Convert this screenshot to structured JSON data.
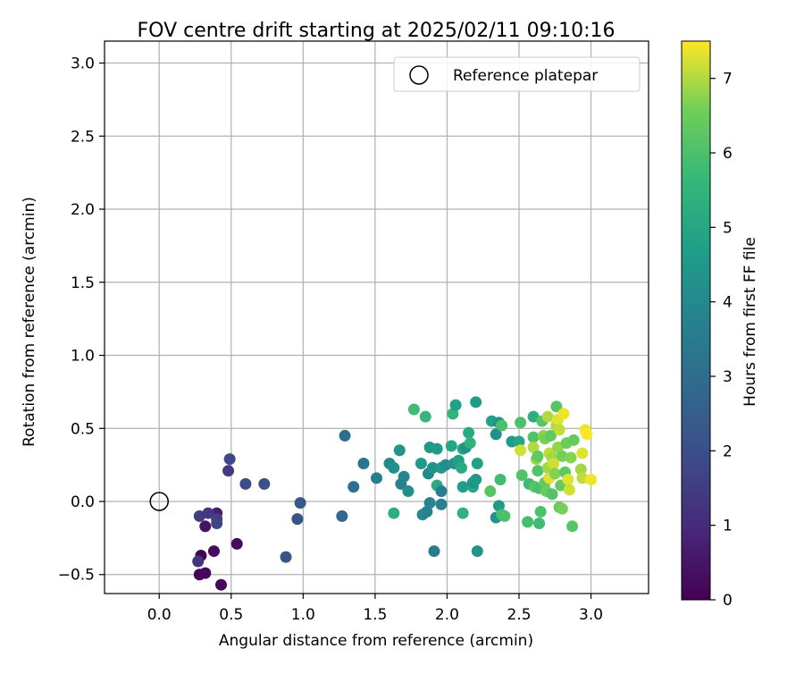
{
  "chart_data": {
    "type": "scatter",
    "title": "FOV centre drift starting at 2025/02/11 09:10:16",
    "xlabel": "Angular distance from reference (arcmin)",
    "ylabel": "Rotation from reference (arcmin)",
    "xlim": [
      -0.38,
      3.4
    ],
    "ylim": [
      -0.63,
      3.15
    ],
    "xticks": [
      "0.0",
      "0.5",
      "1.0",
      "1.5",
      "2.0",
      "2.5",
      "3.0"
    ],
    "xtick_values": [
      0,
      0.5,
      1.0,
      1.5,
      2.0,
      2.5,
      3.0
    ],
    "yticks": [
      "−0.5",
      "0.0",
      "0.5",
      "1.0",
      "1.5",
      "2.0",
      "2.5",
      "3.0"
    ],
    "ytick_values": [
      -0.5,
      0,
      0.5,
      1.0,
      1.5,
      2.0,
      2.5,
      3.0
    ],
    "grid": true,
    "legend": {
      "label": "Reference platepar",
      "placement": "top-right"
    },
    "reference_point": {
      "x": 0.0,
      "y": 0.0
    },
    "colorbar": {
      "label": "Hours from first FF file",
      "range": [
        0,
        7.5
      ],
      "ticks": [
        "0",
        "1",
        "2",
        "3",
        "4",
        "5",
        "6",
        "7"
      ],
      "tick_values": [
        0,
        1,
        2,
        3,
        4,
        5,
        6,
        7
      ],
      "colormap": "viridis"
    },
    "points": [
      {
        "x": 0.28,
        "y": -0.5,
        "t": 0.05
      },
      {
        "x": 0.29,
        "y": -0.37,
        "t": 0.1
      },
      {
        "x": 0.32,
        "y": -0.49,
        "t": 0.15
      },
      {
        "x": 0.43,
        "y": -0.57,
        "t": 0.2
      },
      {
        "x": 0.38,
        "y": -0.34,
        "t": 0.25
      },
      {
        "x": 0.54,
        "y": -0.29,
        "t": 0.3
      },
      {
        "x": 0.32,
        "y": -0.17,
        "t": 0.45
      },
      {
        "x": 0.4,
        "y": -0.08,
        "t": 0.7
      },
      {
        "x": 0.27,
        "y": -0.41,
        "t": 1.3
      },
      {
        "x": 0.28,
        "y": -0.1,
        "t": 1.5
      },
      {
        "x": 0.34,
        "y": -0.08,
        "t": 1.4
      },
      {
        "x": 0.4,
        "y": -0.12,
        "t": 1.6
      },
      {
        "x": 0.4,
        "y": -0.15,
        "t": 1.7
      },
      {
        "x": 0.49,
        "y": 0.29,
        "t": 1.8
      },
      {
        "x": 0.48,
        "y": 0.21,
        "t": 1.4
      },
      {
        "x": 0.6,
        "y": 0.12,
        "t": 1.9
      },
      {
        "x": 0.73,
        "y": 0.12,
        "t": 2.1
      },
      {
        "x": 0.88,
        "y": -0.38,
        "t": 2.1
      },
      {
        "x": 0.96,
        "y": -0.12,
        "t": 2.2
      },
      {
        "x": 0.98,
        "y": -0.01,
        "t": 2.3
      },
      {
        "x": 1.27,
        "y": -0.1,
        "t": 2.9
      },
      {
        "x": 1.29,
        "y": 0.45,
        "t": 3.0
      },
      {
        "x": 1.35,
        "y": 0.1,
        "t": 3.1
      },
      {
        "x": 1.42,
        "y": 0.26,
        "t": 3.3
      },
      {
        "x": 1.51,
        "y": 0.16,
        "t": 3.6
      },
      {
        "x": 1.6,
        "y": 0.26,
        "t": 4.0
      },
      {
        "x": 1.63,
        "y": 0.23,
        "t": 4.2
      },
      {
        "x": 1.67,
        "y": 0.35,
        "t": 4.4
      },
      {
        "x": 1.68,
        "y": 0.12,
        "t": 3.7
      },
      {
        "x": 1.7,
        "y": 0.17,
        "t": 3.9
      },
      {
        "x": 1.73,
        "y": 0.07,
        "t": 4.2
      },
      {
        "x": 1.63,
        "y": -0.08,
        "t": 5.3
      },
      {
        "x": 1.77,
        "y": 0.63,
        "t": 5.8
      },
      {
        "x": 1.82,
        "y": 0.26,
        "t": 4.5
      },
      {
        "x": 1.83,
        "y": -0.09,
        "t": 4.0
      },
      {
        "x": 1.85,
        "y": 0.58,
        "t": 5.6
      },
      {
        "x": 1.86,
        "y": -0.07,
        "t": 3.8
      },
      {
        "x": 1.88,
        "y": -0.01,
        "t": 3.9
      },
      {
        "x": 1.88,
        "y": 0.37,
        "t": 4.5
      },
      {
        "x": 1.87,
        "y": 0.19,
        "t": 4.0
      },
      {
        "x": 1.9,
        "y": 0.23,
        "t": 4.3
      },
      {
        "x": 1.91,
        "y": -0.34,
        "t": 3.5
      },
      {
        "x": 1.93,
        "y": 0.36,
        "t": 4.6
      },
      {
        "x": 1.93,
        "y": 0.11,
        "t": 5.2
      },
      {
        "x": 1.96,
        "y": 0.07,
        "t": 3.6
      },
      {
        "x": 1.96,
        "y": -0.02,
        "t": 3.7
      },
      {
        "x": 1.96,
        "y": 0.23,
        "t": 4.6
      },
      {
        "x": 1.99,
        "y": 0.25,
        "t": 4.1
      },
      {
        "x": 2.03,
        "y": 0.38,
        "t": 5.0
      },
      {
        "x": 2.04,
        "y": 0.6,
        "t": 5.5
      },
      {
        "x": 2.05,
        "y": 0.26,
        "t": 4.3
      },
      {
        "x": 2.06,
        "y": 0.66,
        "t": 4.8
      },
      {
        "x": 2.08,
        "y": 0.28,
        "t": 4.8
      },
      {
        "x": 2.1,
        "y": 0.23,
        "t": 5.2
      },
      {
        "x": 2.11,
        "y": 0.36,
        "t": 4.9
      },
      {
        "x": 2.11,
        "y": -0.08,
        "t": 5.4
      },
      {
        "x": 2.11,
        "y": 0.1,
        "t": 4.7
      },
      {
        "x": 2.13,
        "y": 0.37,
        "t": 4.3
      },
      {
        "x": 2.15,
        "y": 0.47,
        "t": 5.1
      },
      {
        "x": 2.16,
        "y": 0.4,
        "t": 5.4
      },
      {
        "x": 2.18,
        "y": 0.1,
        "t": 5.0
      },
      {
        "x": 2.18,
        "y": 0.13,
        "t": 4.4
      },
      {
        "x": 2.2,
        "y": 0.68,
        "t": 4.6
      },
      {
        "x": 2.2,
        "y": 0.15,
        "t": 4.5
      },
      {
        "x": 2.21,
        "y": 0.26,
        "t": 4.8
      },
      {
        "x": 2.21,
        "y": -0.34,
        "t": 4.4
      },
      {
        "x": 2.3,
        "y": 0.07,
        "t": 6.2
      },
      {
        "x": 2.31,
        "y": 0.55,
        "t": 4.8
      },
      {
        "x": 2.34,
        "y": 0.46,
        "t": 4.2
      },
      {
        "x": 2.34,
        "y": -0.11,
        "t": 4.3
      },
      {
        "x": 2.36,
        "y": 0.54,
        "t": 4.4
      },
      {
        "x": 2.36,
        "y": -0.03,
        "t": 4.6
      },
      {
        "x": 2.37,
        "y": 0.15,
        "t": 5.8
      },
      {
        "x": 2.38,
        "y": 0.52,
        "t": 6.0
      },
      {
        "x": 2.38,
        "y": -0.09,
        "t": 5.9
      },
      {
        "x": 2.4,
        "y": -0.1,
        "t": 6.0
      },
      {
        "x": 2.45,
        "y": 0.41,
        "t": 4.6
      },
      {
        "x": 2.5,
        "y": 0.41,
        "t": 5.0
      },
      {
        "x": 2.51,
        "y": 0.54,
        "t": 6.0
      },
      {
        "x": 2.51,
        "y": 0.35,
        "t": 7.2
      },
      {
        "x": 2.52,
        "y": 0.18,
        "t": 6.1
      },
      {
        "x": 2.56,
        "y": -0.14,
        "t": 5.9
      },
      {
        "x": 2.57,
        "y": 0.12,
        "t": 5.8
      },
      {
        "x": 2.6,
        "y": 0.58,
        "t": 5.3
      },
      {
        "x": 2.6,
        "y": 0.44,
        "t": 6.1
      },
      {
        "x": 2.6,
        "y": 0.37,
        "t": 7.0
      },
      {
        "x": 2.61,
        "y": 0.1,
        "t": 6.2
      },
      {
        "x": 2.62,
        "y": 0.29,
        "t": 6.8
      },
      {
        "x": 2.63,
        "y": 0.21,
        "t": 6.1
      },
      {
        "x": 2.63,
        "y": 0.31,
        "t": 6.3
      },
      {
        "x": 2.64,
        "y": 0.09,
        "t": 6.0
      },
      {
        "x": 2.64,
        "y": -0.15,
        "t": 5.8
      },
      {
        "x": 2.65,
        "y": -0.07,
        "t": 6.0
      },
      {
        "x": 2.66,
        "y": 0.55,
        "t": 6.2
      },
      {
        "x": 2.67,
        "y": 0.45,
        "t": 6.8
      },
      {
        "x": 2.68,
        "y": 0.43,
        "t": 6.6
      },
      {
        "x": 2.68,
        "y": 0.13,
        "t": 6.4
      },
      {
        "x": 2.69,
        "y": 0.07,
        "t": 6.5
      },
      {
        "x": 2.7,
        "y": 0.23,
        "t": 6.9
      },
      {
        "x": 2.7,
        "y": 0.58,
        "t": 7.0
      },
      {
        "x": 2.71,
        "y": 0.33,
        "t": 7.1
      },
      {
        "x": 2.71,
        "y": 0.16,
        "t": 7.3
      },
      {
        "x": 2.72,
        "y": 0.45,
        "t": 6.3
      },
      {
        "x": 2.73,
        "y": 0.3,
        "t": 6.9
      },
      {
        "x": 2.73,
        "y": 0.05,
        "t": 6.1
      },
      {
        "x": 2.74,
        "y": 0.26,
        "t": 7.2
      },
      {
        "x": 2.75,
        "y": 0.19,
        "t": 6.7
      },
      {
        "x": 2.76,
        "y": 0.65,
        "t": 6.2
      },
      {
        "x": 2.76,
        "y": 0.52,
        "t": 7.0
      },
      {
        "x": 2.77,
        "y": 0.37,
        "t": 6.8
      },
      {
        "x": 2.77,
        "y": 0.56,
        "t": 7.3
      },
      {
        "x": 2.78,
        "y": 0.49,
        "t": 7.1
      },
      {
        "x": 2.78,
        "y": -0.04,
        "t": 6.4
      },
      {
        "x": 2.79,
        "y": 0.11,
        "t": 6.4
      },
      {
        "x": 2.8,
        "y": 0.31,
        "t": 6.6
      },
      {
        "x": 2.8,
        "y": -0.05,
        "t": 6.6
      },
      {
        "x": 2.81,
        "y": 0.6,
        "t": 7.4
      },
      {
        "x": 2.82,
        "y": 0.2,
        "t": 6.3
      },
      {
        "x": 2.83,
        "y": 0.4,
        "t": 6.5
      },
      {
        "x": 2.84,
        "y": 0.15,
        "t": 7.3
      },
      {
        "x": 2.85,
        "y": 0.08,
        "t": 7.2
      },
      {
        "x": 2.86,
        "y": 0.3,
        "t": 6.7
      },
      {
        "x": 2.87,
        "y": -0.17,
        "t": 6.2
      },
      {
        "x": 2.88,
        "y": 0.42,
        "t": 6.4
      },
      {
        "x": 2.93,
        "y": 0.22,
        "t": 6.9
      },
      {
        "x": 2.94,
        "y": 0.16,
        "t": 7.1
      },
      {
        "x": 2.94,
        "y": 0.33,
        "t": 7.3
      },
      {
        "x": 2.96,
        "y": 0.49,
        "t": 7.4
      },
      {
        "x": 2.97,
        "y": 0.46,
        "t": 7.5
      },
      {
        "x": 3.0,
        "y": 0.15,
        "t": 7.4
      }
    ]
  }
}
